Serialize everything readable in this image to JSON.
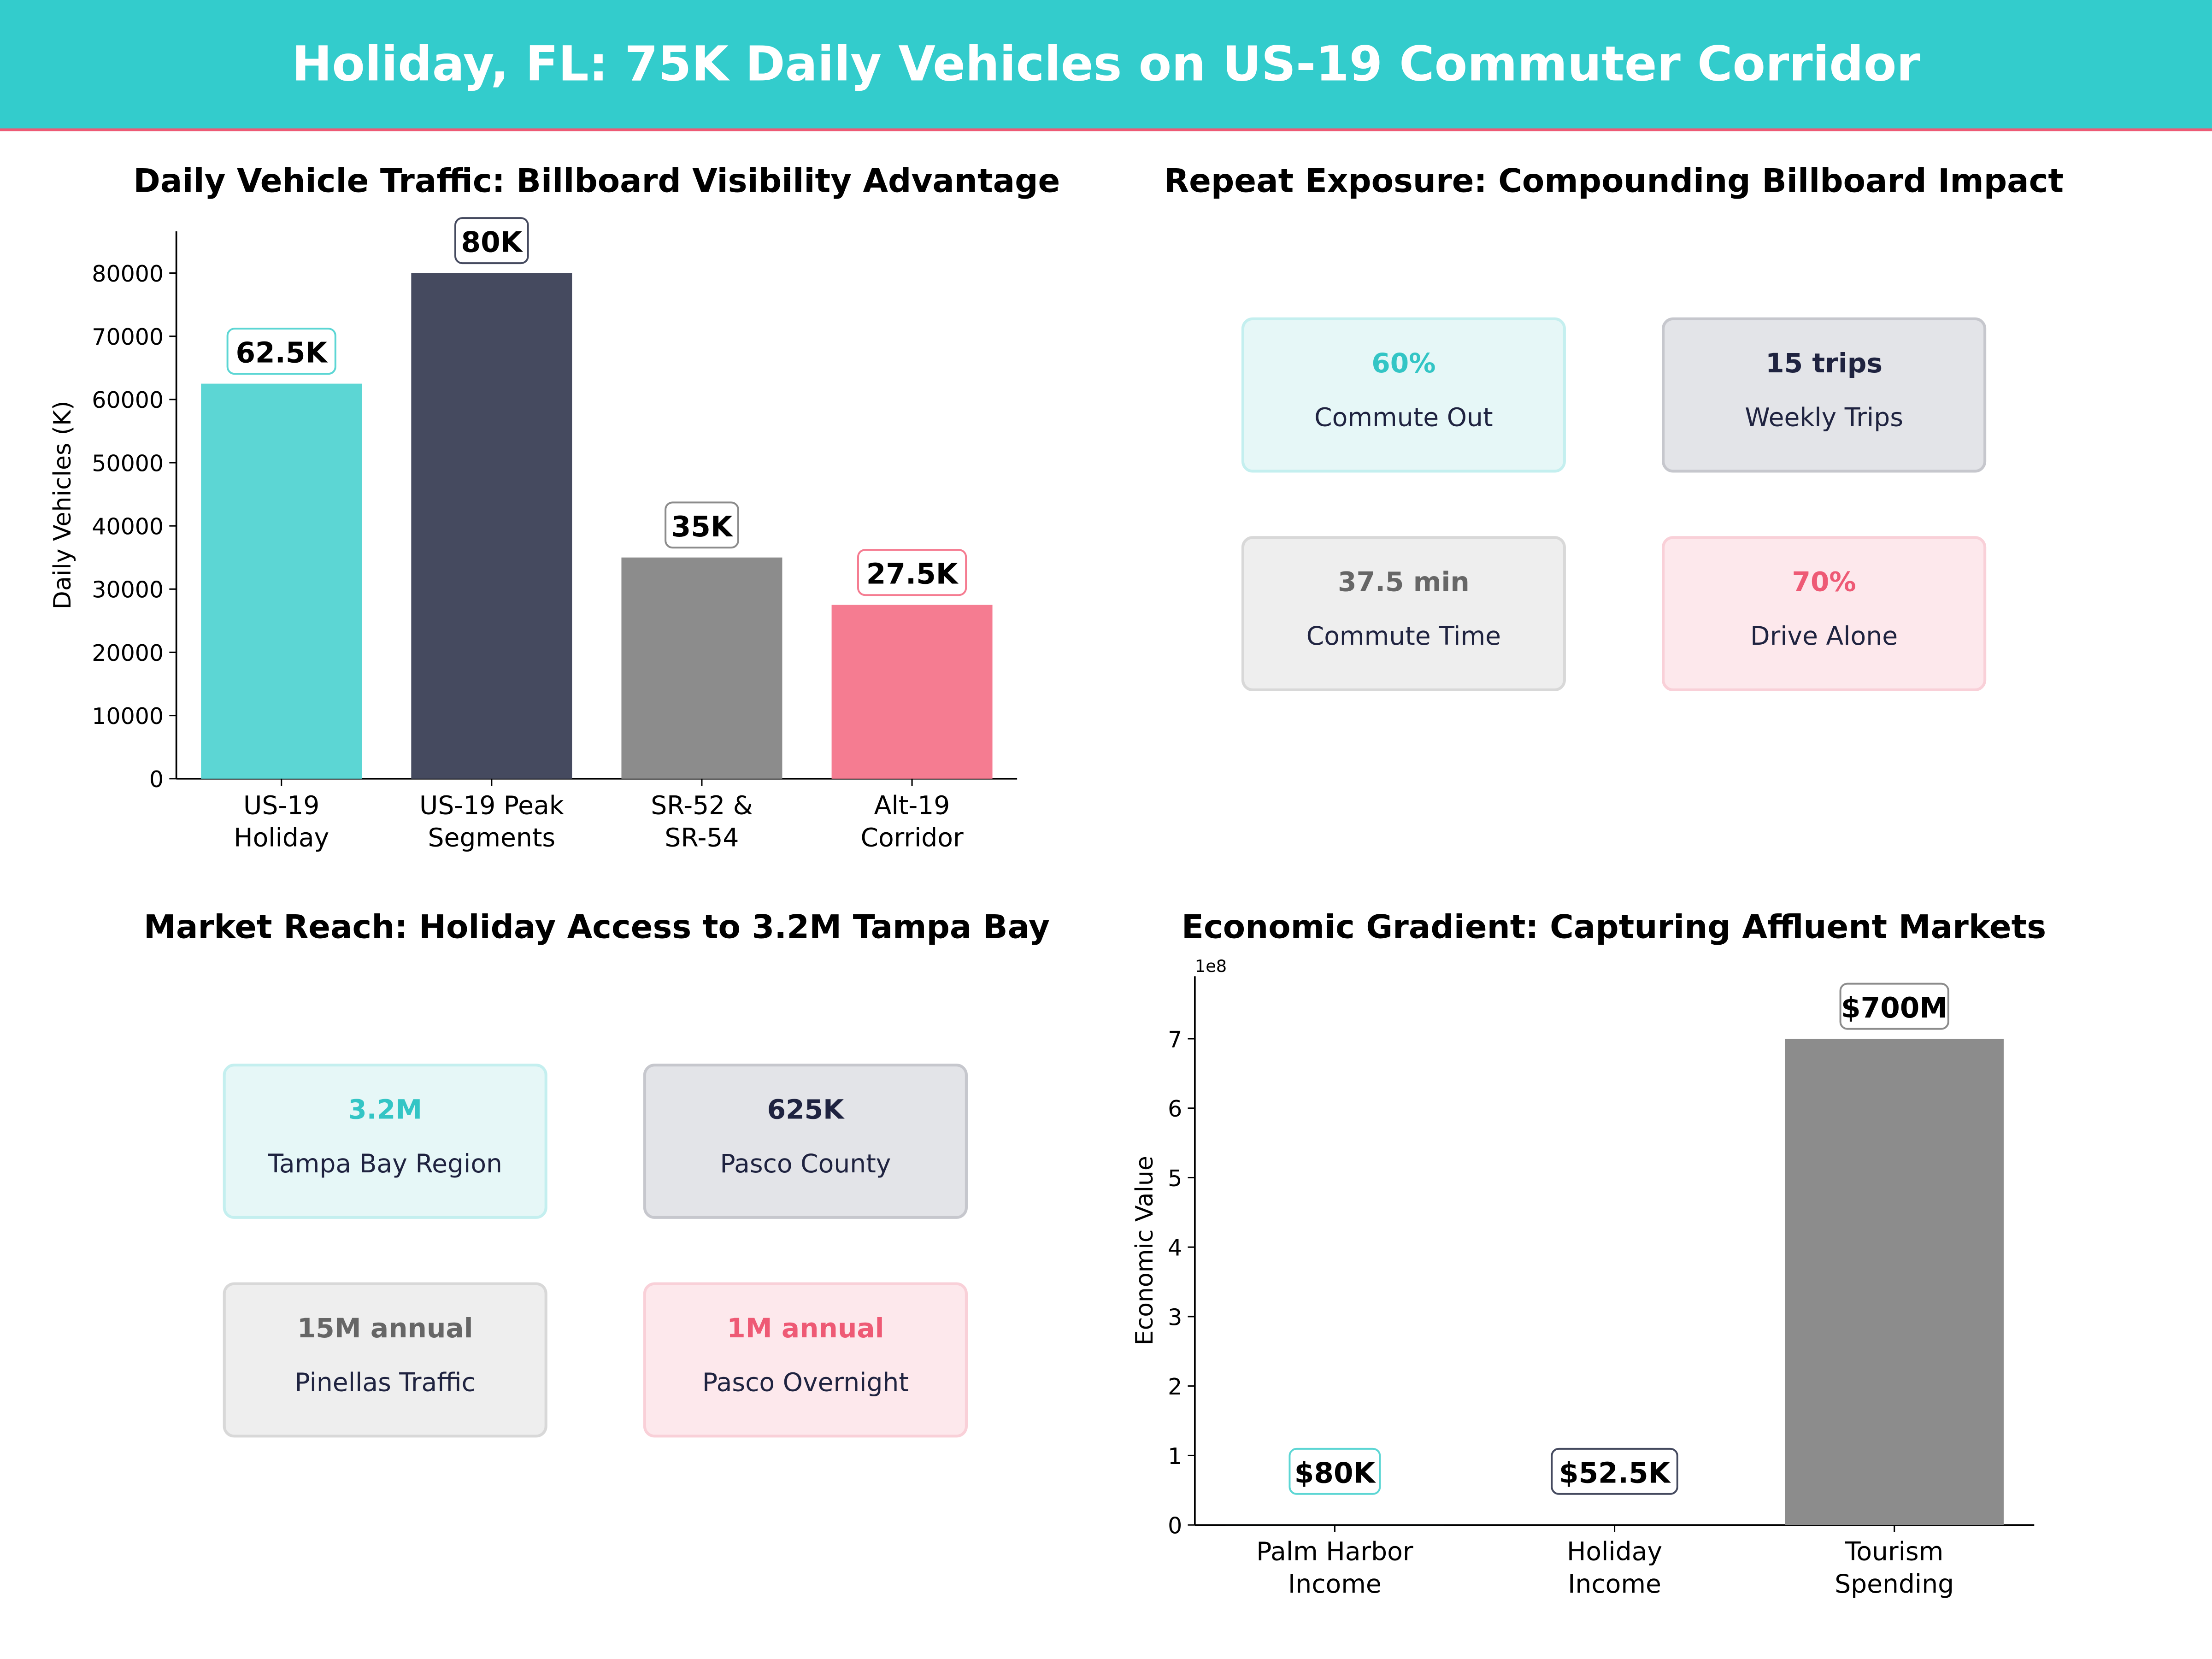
{
  "header": {
    "title": "Holiday, FL: 75K Daily Vehicles on US-19 Commuter Corridor"
  },
  "colors": {
    "teal": "#33cccc",
    "navy": "#454a5f",
    "gray": "#8c8c8c",
    "pink": "#f57c91",
    "accent_line": "#ee5a75"
  },
  "panels": {
    "exposure": {
      "title": "Repeat Exposure: Compounding Billboard Impact",
      "cards": [
        {
          "value": "60%",
          "label": "Commute Out",
          "theme": "teal"
        },
        {
          "value": "15 trips",
          "label": "Weekly Trips",
          "theme": "navy"
        },
        {
          "value": "37.5 min",
          "label": "Commute Time",
          "theme": "gray"
        },
        {
          "value": "70%",
          "label": "Drive Alone",
          "theme": "pink"
        }
      ]
    },
    "reach": {
      "title": "Market Reach: Holiday Access to 3.2M Tampa Bay",
      "cards": [
        {
          "value": "3.2M",
          "label": "Tampa Bay Region",
          "theme": "teal"
        },
        {
          "value": "625K",
          "label": "Pasco County",
          "theme": "navy"
        },
        {
          "value": "15M annual",
          "label": "Pinellas Traffic",
          "theme": "gray"
        },
        {
          "value": "1M annual",
          "label": "Pasco Overnight",
          "theme": "pink"
        }
      ]
    }
  },
  "chart_data": [
    {
      "type": "bar",
      "title": "Daily Vehicle Traffic: Billboard Visibility Advantage",
      "xlabel": "",
      "ylabel": "Daily Vehicles (K)",
      "categories": [
        "US-19\nHoliday",
        "US-19 Peak\nSegments",
        "SR-52 &\nSR-54",
        "Alt-19\nCorridor"
      ],
      "values": [
        62500,
        80000,
        35000,
        27500
      ],
      "data_labels": [
        "62.5K",
        "80K",
        "35K",
        "27.5K"
      ],
      "bar_colors": [
        "#5cd6d4",
        "#454a5f",
        "#8c8c8c",
        "#f57c91"
      ],
      "label_border_colors": [
        "#5cd6d4",
        "#454a5f",
        "#8c8c8c",
        "#f57c91"
      ],
      "yticks": [
        0,
        10000,
        20000,
        30000,
        40000,
        50000,
        60000,
        70000,
        80000
      ],
      "ytick_labels": [
        "0",
        "10000",
        "20000",
        "30000",
        "40000",
        "50000",
        "60000",
        "70000",
        "80000"
      ],
      "ylim": [
        0,
        86600
      ],
      "grid": false
    },
    {
      "type": "bar",
      "title": "Economic Gradient: Capturing Affluent Markets",
      "xlabel": "",
      "ylabel": "Economic Value",
      "offset_text": "1e8",
      "categories": [
        "Palm Harbor\nIncome",
        "Holiday\nIncome",
        "Tourism\nSpending"
      ],
      "values": [
        80000,
        52500,
        700000000
      ],
      "data_labels": [
        "$80K",
        "$52.5K",
        "$700M"
      ],
      "bar_colors": [
        "#5cd6d4",
        "#454a5f",
        "#8c8c8c"
      ],
      "label_border_colors": [
        "#5cd6d4",
        "#454a5f",
        "#8c8c8c"
      ],
      "yticks": [
        0,
        100000000,
        200000000,
        300000000,
        400000000,
        500000000,
        600000000,
        700000000
      ],
      "ytick_labels": [
        "0",
        "1",
        "2",
        "3",
        "4",
        "5",
        "6",
        "7"
      ],
      "ylim": [
        0,
        790000000
      ],
      "grid": false
    }
  ]
}
